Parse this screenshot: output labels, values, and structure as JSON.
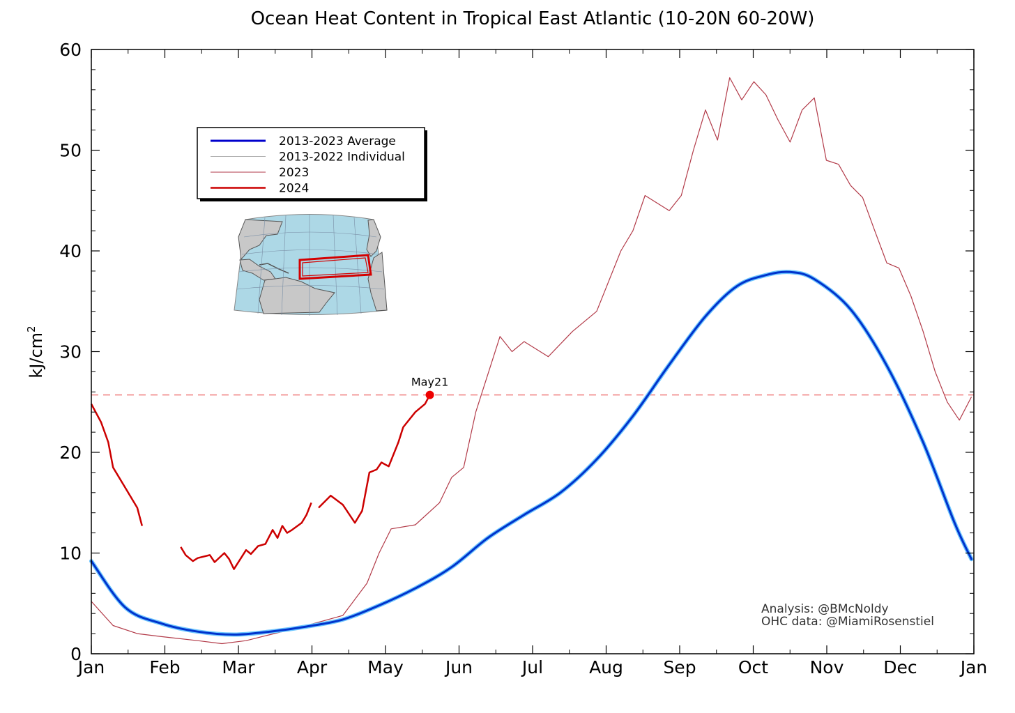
{
  "chart_data": {
    "type": "line",
    "title": "Ocean Heat Content in Tropical East Atlantic (10-20N 60-20W)",
    "ylabel": "kJ/cm",
    "ylabel_sup": "2",
    "xlabel": "",
    "ylim": [
      0,
      60
    ],
    "yticks": [
      0,
      10,
      20,
      30,
      40,
      50,
      60
    ],
    "xticks": [
      "Jan",
      "Feb",
      "Mar",
      "Apr",
      "May",
      "Jun",
      "Jul",
      "Aug",
      "Sep",
      "Oct",
      "Nov",
      "Dec",
      "Jan"
    ],
    "grid": false,
    "legend_position": "upper-left",
    "legend": [
      {
        "label": "2013-2023 Average",
        "color": "#0000cc",
        "width": 3
      },
      {
        "label": "2013-2022 Individual",
        "color": "#b0b0b0",
        "width": 1
      },
      {
        "label": "2023",
        "color": "#b23a48",
        "width": 1
      },
      {
        "label": "2024",
        "color": "#cc0000",
        "width": 2.5
      }
    ],
    "reference_line": {
      "y": 25.7,
      "color": "#f08080",
      "style": "dashed"
    },
    "annotation": {
      "text": "May21",
      "x": 141,
      "y": 25.7
    },
    "credits": [
      "Analysis: @BMcNoldy",
      "OHC data: @MiamiRosenstiel"
    ],
    "series": [
      {
        "name": "2013-2023 Average",
        "color": "#0033cc",
        "x": [
          1,
          15,
          30,
          45,
          60,
          75,
          90,
          105,
          120,
          135,
          150,
          165,
          180,
          195,
          210,
          225,
          240,
          255,
          268,
          280,
          290,
          300,
          315,
          330,
          345,
          358,
          365
        ],
        "y": [
          9.2,
          4.6,
          3.0,
          2.2,
          1.9,
          2.2,
          2.7,
          3.4,
          4.8,
          6.5,
          8.6,
          11.5,
          13.8,
          16.0,
          19.3,
          23.6,
          28.7,
          33.5,
          36.5,
          37.6,
          37.9,
          37.2,
          34.2,
          28.6,
          21.0,
          13.0,
          9.4
        ]
      },
      {
        "name": "2023",
        "color": "#b23a48",
        "x": [
          1,
          10,
          20,
          30,
          45,
          55,
          65,
          75,
          90,
          105,
          115,
          120,
          125,
          135,
          145,
          150,
          155,
          160,
          170,
          175,
          180,
          190,
          200,
          210,
          220,
          225,
          230,
          240,
          245,
          250,
          255,
          260,
          265,
          270,
          275,
          280,
          285,
          290,
          295,
          300,
          305,
          310,
          315,
          320,
          325,
          330,
          335,
          340,
          345,
          350,
          355,
          360,
          365
        ],
        "y": [
          5.2,
          2.8,
          2.0,
          1.7,
          1.3,
          1.0,
          1.3,
          1.9,
          2.8,
          3.8,
          7.0,
          10.0,
          12.4,
          12.8,
          15.0,
          17.5,
          18.5,
          24.0,
          31.5,
          30.0,
          31.0,
          29.5,
          32.0,
          34.0,
          40.0,
          42.0,
          45.5,
          44.0,
          45.5,
          50.0,
          54.0,
          51.0,
          57.2,
          55.0,
          56.8,
          55.5,
          53.0,
          50.8,
          54.0,
          55.2,
          49.0,
          48.6,
          46.5,
          45.3,
          42.0,
          38.8,
          38.3,
          35.5,
          32.0,
          28.0,
          25.0,
          23.2,
          25.5
        ]
      },
      {
        "name": "2024",
        "color": "#cc0000",
        "segments": [
          {
            "x": [
              1,
              5,
              8,
              10,
              15,
              20,
              22
            ],
            "y": [
              24.8,
              23.0,
              21.0,
              18.5,
              16.5,
              14.5,
              12.7
            ]
          },
          {
            "x": [
              38,
              40,
              43,
              45,
              50,
              52,
              56,
              58,
              60,
              65,
              67,
              70,
              73,
              76,
              78,
              80,
              82,
              84,
              88,
              90,
              92
            ],
            "y": [
              10.6,
              9.8,
              9.2,
              9.5,
              9.8,
              9.1,
              10.0,
              9.4,
              8.4,
              10.3,
              9.9,
              10.7,
              10.9,
              12.3,
              11.5,
              12.7,
              12.0,
              12.3,
              13.0,
              13.8,
              15.0
            ]
          },
          {
            "x": [
              95,
              100,
              105,
              110,
              113,
              116,
              119,
              121,
              124,
              128,
              130,
              135,
              139,
              141
            ],
            "y": [
              14.5,
              15.7,
              14.8,
              13.0,
              14.2,
              18.0,
              18.3,
              19.0,
              18.6,
              21.0,
              22.5,
              24.0,
              24.8,
              25.7
            ]
          }
        ]
      }
    ]
  }
}
